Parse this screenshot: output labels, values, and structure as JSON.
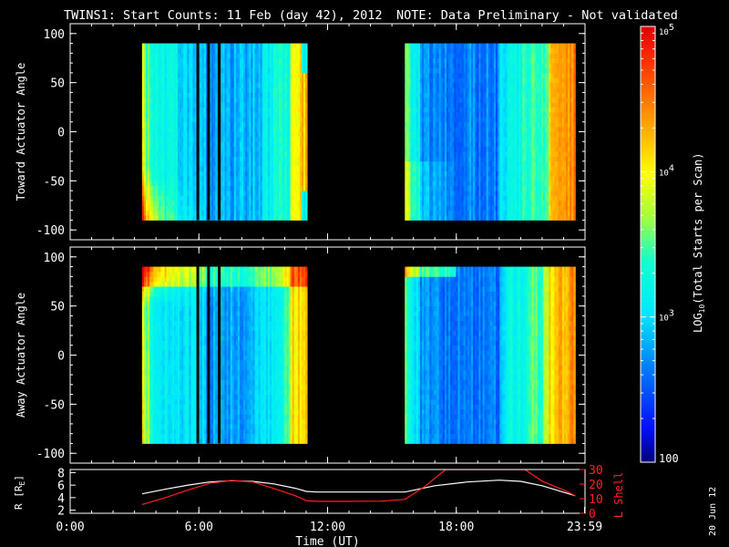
{
  "title": "TWINS1: Start Counts: 11 Feb (day  42), 2012",
  "note": "NOTE: Data Preliminary - Not validated",
  "date_stamp": "20 Jun 12",
  "colors": {
    "note": "#ff2020",
    "ephem_r": "#ffffff",
    "ephem_l": "#ff2020"
  },
  "colorbar": {
    "label": "LOG",
    "label_sub": "10",
    "label_rest": "(Total Starts per Scan)",
    "scale": "log",
    "range": [
      100,
      100000
    ],
    "ticks": [
      {
        "value": 100,
        "text": "100"
      },
      {
        "value": 1000,
        "base": "10",
        "exp": "3"
      },
      {
        "value": 10000,
        "base": "10",
        "exp": "4"
      },
      {
        "value": 100000,
        "base": "10",
        "exp": "5"
      }
    ]
  },
  "chart_data": [
    {
      "type": "heatmap",
      "panel": "toward",
      "ylabel": "Toward Actuator Angle",
      "ylim": [
        -110,
        110
      ],
      "yticks": [
        -100,
        -50,
        0,
        50,
        100
      ],
      "xlim": [
        0,
        24
      ],
      "coverage_hours": [
        [
          3.35,
          11.05
        ],
        [
          15.6,
          23.55
        ]
      ],
      "gap_lines_hours": [
        5.95,
        6.45,
        6.95
      ]
    },
    {
      "type": "heatmap",
      "panel": "away",
      "ylabel": "Away Actuator Angle",
      "ylim": [
        -110,
        110
      ],
      "yticks": [
        -100,
        -50,
        0,
        50,
        100
      ],
      "xlim": [
        0,
        24
      ],
      "coverage_hours": [
        [
          3.35,
          11.05
        ],
        [
          15.6,
          23.55
        ]
      ],
      "gap_lines_hours": [
        5.95,
        6.45,
        6.95
      ]
    },
    {
      "type": "line",
      "panel": "ephemeris",
      "xlabel": "Time (UT)",
      "xlim": [
        0,
        24
      ],
      "xticks": [
        {
          "value": 0,
          "text": "0:00"
        },
        {
          "value": 6,
          "text": "6:00"
        },
        {
          "value": 12,
          "text": "12:00"
        },
        {
          "value": 18,
          "text": "18:00"
        },
        {
          "value": 23.98,
          "text": "23:59"
        }
      ],
      "ylabel_left": "R [R",
      "ylabel_left_sub": "E",
      "ylabel_left_close": "]",
      "ylim_left": [
        1.5,
        8.5
      ],
      "yticks_left": [
        2,
        4,
        6,
        8
      ],
      "ylabel_right": "L Shell",
      "ylim_right": [
        0,
        30
      ],
      "yticks_right": [
        0,
        10,
        20,
        30
      ],
      "series": [
        {
          "axis": "left",
          "x": [
            3.35,
            4.5,
            5.5,
            6.5,
            7.5,
            8.5,
            9.5,
            10.5,
            11.0,
            11.5,
            13,
            14.5,
            15.6,
            17,
            18.5,
            20,
            21,
            22,
            23.55
          ],
          "y": [
            4.6,
            5.4,
            6.0,
            6.5,
            6.7,
            6.6,
            6.2,
            5.5,
            5.0,
            4.9,
            4.9,
            4.9,
            4.9,
            5.9,
            6.5,
            6.8,
            6.6,
            5.9,
            4.3
          ]
        },
        {
          "axis": "right",
          "x": [
            3.35,
            4.5,
            5.5,
            6.5,
            7.5,
            8.5,
            9.5,
            10.5,
            11.05,
            11.5,
            13,
            14.5,
            15.6,
            16.5,
            17.5,
            21.2,
            22,
            23,
            23.55
          ],
          "y": [
            6,
            11,
            16,
            20.5,
            22.5,
            21.5,
            17,
            12,
            8.5,
            8.2,
            8.2,
            8.3,
            9.5,
            18,
            30,
            30,
            22,
            16,
            12
          ]
        }
      ]
    }
  ]
}
